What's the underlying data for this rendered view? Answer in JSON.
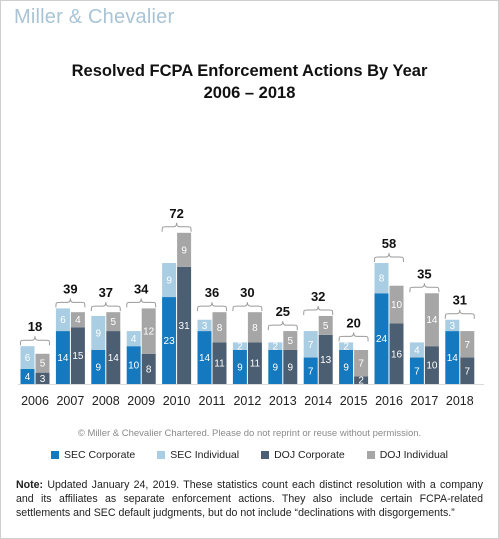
{
  "brand": {
    "logo_text": "Miller & Chevalier"
  },
  "titles": {
    "line1": "Resolved FCPA Enforcement Actions By Year",
    "line2": "2006 – 2018"
  },
  "copyright": "© Miller & Chevalier Chartered. Please do not reprint or reuse without permission.",
  "note": {
    "label": "Note:",
    "text": "Updated January 24, 2019. These statistics count each distinct resolution with a company and its affiliates as separate enforcement actions. They also include certain FCPA-related settlements and SEC default judgments, but do not include “declinations with disgorgements.”"
  },
  "colors": {
    "sec_corporate": "#1479bf",
    "sec_individual": "#a9cde3",
    "doj_corporate": "#4c5e71",
    "doj_individual": "#a6a6a6"
  },
  "chart_data": {
    "type": "bar",
    "stacking": "two stacked columns per year (SEC, DOJ)",
    "categories": [
      "2006",
      "2007",
      "2008",
      "2009",
      "2010",
      "2011",
      "2012",
      "2013",
      "2014",
      "2015",
      "2016",
      "2017",
      "2018"
    ],
    "series": [
      {
        "name": "SEC Corporate",
        "group": "SEC",
        "values": [
          4,
          14,
          9,
          10,
          23,
          14,
          9,
          9,
          7,
          9,
          24,
          7,
          14
        ],
        "labels": [
          "4",
          "14",
          "9",
          "10",
          "23",
          "14",
          "9",
          "9",
          "7",
          "9",
          "24",
          "7",
          "14"
        ]
      },
      {
        "name": "SEC Individual",
        "group": "SEC",
        "values": [
          6,
          6,
          9,
          4,
          9,
          3,
          2,
          2,
          7,
          2,
          8,
          4,
          3
        ],
        "labels": [
          "6",
          "6",
          "9",
          "4",
          "9",
          "3",
          "2",
          "2",
          "7",
          "2",
          "8",
          "4",
          "3"
        ]
      },
      {
        "name": "DOJ Corporate",
        "group": "DOJ",
        "values": [
          3,
          15,
          14,
          8,
          31,
          11,
          11,
          9,
          13,
          2,
          16,
          10,
          7
        ],
        "labels": [
          "3",
          "15",
          "14",
          "8",
          "31",
          "11",
          "11",
          "9",
          "13",
          "2",
          "16",
          "10",
          "7"
        ]
      },
      {
        "name": "DOJ Individual",
        "group": "DOJ",
        "values": [
          5,
          4,
          5,
          12,
          9,
          8,
          8,
          5,
          5,
          7,
          10,
          14,
          7
        ],
        "labels": [
          "5",
          "4",
          "5",
          "12",
          "9",
          "8",
          "8",
          "5",
          "5",
          "7",
          "10",
          "14",
          "7"
        ]
      }
    ],
    "totals": [
      "18",
      "39",
      "37",
      "34",
      "72",
      "36",
      "30",
      "25",
      "32",
      "20",
      "58",
      "35",
      "31"
    ],
    "legend": [
      "SEC Corporate",
      "SEC Individual",
      "DOJ Corporate",
      "DOJ Individual"
    ],
    "legend_position": "bottom",
    "grid": false
  }
}
